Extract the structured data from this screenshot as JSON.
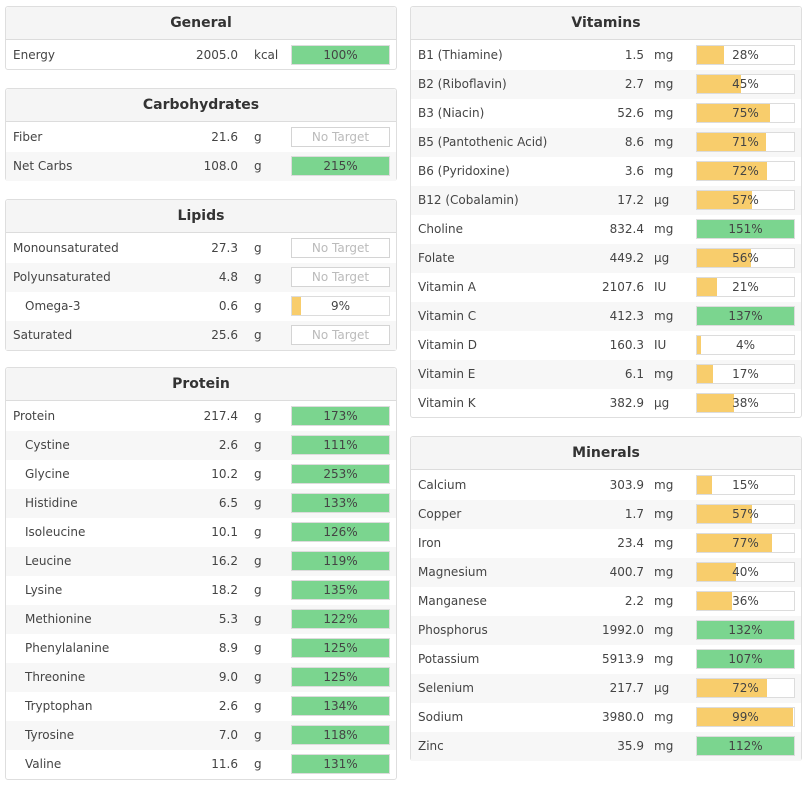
{
  "colors": {
    "green": "#7bd58f",
    "orange": "#f8cd6c"
  },
  "panels": {
    "general": {
      "title": "General",
      "rows": [
        {
          "name": "Energy",
          "amount": "2005.0",
          "unit": "kcal",
          "pct": "100%",
          "value": 100,
          "kind": "green"
        }
      ]
    },
    "carbohydrates": {
      "title": "Carbohydrates",
      "rows": [
        {
          "name": "Fiber",
          "amount": "21.6",
          "unit": "g",
          "pct": "No Target",
          "value": 0,
          "kind": "none"
        },
        {
          "name": "Net Carbs",
          "amount": "108.0",
          "unit": "g",
          "pct": "215%",
          "value": 215,
          "kind": "green"
        }
      ]
    },
    "lipids": {
      "title": "Lipids",
      "rows": [
        {
          "name": "Monounsaturated",
          "amount": "27.3",
          "unit": "g",
          "pct": "No Target",
          "value": 0,
          "kind": "none"
        },
        {
          "name": "Polyunsaturated",
          "amount": "4.8",
          "unit": "g",
          "pct": "No Target",
          "value": 0,
          "kind": "none"
        },
        {
          "name": "Omega-3",
          "amount": "0.6",
          "unit": "g",
          "pct": "9%",
          "value": 9,
          "kind": "orange",
          "indent": true
        },
        {
          "name": "Saturated",
          "amount": "25.6",
          "unit": "g",
          "pct": "No Target",
          "value": 0,
          "kind": "none"
        }
      ]
    },
    "protein": {
      "title": "Protein",
      "rows": [
        {
          "name": "Protein",
          "amount": "217.4",
          "unit": "g",
          "pct": "173%",
          "value": 173,
          "kind": "green"
        },
        {
          "name": "Cystine",
          "amount": "2.6",
          "unit": "g",
          "pct": "111%",
          "value": 111,
          "kind": "green",
          "indent": true
        },
        {
          "name": "Glycine",
          "amount": "10.2",
          "unit": "g",
          "pct": "253%",
          "value": 253,
          "kind": "green",
          "indent": true
        },
        {
          "name": "Histidine",
          "amount": "6.5",
          "unit": "g",
          "pct": "133%",
          "value": 133,
          "kind": "green",
          "indent": true
        },
        {
          "name": "Isoleucine",
          "amount": "10.1",
          "unit": "g",
          "pct": "126%",
          "value": 126,
          "kind": "green",
          "indent": true
        },
        {
          "name": "Leucine",
          "amount": "16.2",
          "unit": "g",
          "pct": "119%",
          "value": 119,
          "kind": "green",
          "indent": true
        },
        {
          "name": "Lysine",
          "amount": "18.2",
          "unit": "g",
          "pct": "135%",
          "value": 135,
          "kind": "green",
          "indent": true
        },
        {
          "name": "Methionine",
          "amount": "5.3",
          "unit": "g",
          "pct": "122%",
          "value": 122,
          "kind": "green",
          "indent": true
        },
        {
          "name": "Phenylalanine",
          "amount": "8.9",
          "unit": "g",
          "pct": "125%",
          "value": 125,
          "kind": "green",
          "indent": true
        },
        {
          "name": "Threonine",
          "amount": "9.0",
          "unit": "g",
          "pct": "125%",
          "value": 125,
          "kind": "green",
          "indent": true
        },
        {
          "name": "Tryptophan",
          "amount": "2.6",
          "unit": "g",
          "pct": "134%",
          "value": 134,
          "kind": "green",
          "indent": true
        },
        {
          "name": "Tyrosine",
          "amount": "7.0",
          "unit": "g",
          "pct": "118%",
          "value": 118,
          "kind": "green",
          "indent": true
        },
        {
          "name": "Valine",
          "amount": "11.6",
          "unit": "g",
          "pct": "131%",
          "value": 131,
          "kind": "green",
          "indent": true
        }
      ]
    },
    "vitamins": {
      "title": "Vitamins",
      "rows": [
        {
          "name": "B1 (Thiamine)",
          "amount": "1.5",
          "unit": "mg",
          "pct": "28%",
          "value": 28,
          "kind": "orange"
        },
        {
          "name": "B2 (Riboflavin)",
          "amount": "2.7",
          "unit": "mg",
          "pct": "45%",
          "value": 45,
          "kind": "orange"
        },
        {
          "name": "B3 (Niacin)",
          "amount": "52.6",
          "unit": "mg",
          "pct": "75%",
          "value": 75,
          "kind": "orange"
        },
        {
          "name": "B5 (Pantothenic Acid)",
          "amount": "8.6",
          "unit": "mg",
          "pct": "71%",
          "value": 71,
          "kind": "orange"
        },
        {
          "name": "B6 (Pyridoxine)",
          "amount": "3.6",
          "unit": "mg",
          "pct": "72%",
          "value": 72,
          "kind": "orange"
        },
        {
          "name": "B12 (Cobalamin)",
          "amount": "17.2",
          "unit": "µg",
          "pct": "57%",
          "value": 57,
          "kind": "orange"
        },
        {
          "name": "Choline",
          "amount": "832.4",
          "unit": "mg",
          "pct": "151%",
          "value": 151,
          "kind": "green"
        },
        {
          "name": "Folate",
          "amount": "449.2",
          "unit": "µg",
          "pct": "56%",
          "value": 56,
          "kind": "orange"
        },
        {
          "name": "Vitamin A",
          "amount": "2107.6",
          "unit": "IU",
          "pct": "21%",
          "value": 21,
          "kind": "orange"
        },
        {
          "name": "Vitamin C",
          "amount": "412.3",
          "unit": "mg",
          "pct": "137%",
          "value": 137,
          "kind": "green"
        },
        {
          "name": "Vitamin D",
          "amount": "160.3",
          "unit": "IU",
          "pct": "4%",
          "value": 4,
          "kind": "orange"
        },
        {
          "name": "Vitamin E",
          "amount": "6.1",
          "unit": "mg",
          "pct": "17%",
          "value": 17,
          "kind": "orange"
        },
        {
          "name": "Vitamin K",
          "amount": "382.9",
          "unit": "µg",
          "pct": "38%",
          "value": 38,
          "kind": "orange"
        }
      ]
    },
    "minerals": {
      "title": "Minerals",
      "rows": [
        {
          "name": "Calcium",
          "amount": "303.9",
          "unit": "mg",
          "pct": "15%",
          "value": 15,
          "kind": "orange"
        },
        {
          "name": "Copper",
          "amount": "1.7",
          "unit": "mg",
          "pct": "57%",
          "value": 57,
          "kind": "orange"
        },
        {
          "name": "Iron",
          "amount": "23.4",
          "unit": "mg",
          "pct": "77%",
          "value": 77,
          "kind": "orange"
        },
        {
          "name": "Magnesium",
          "amount": "400.7",
          "unit": "mg",
          "pct": "40%",
          "value": 40,
          "kind": "orange"
        },
        {
          "name": "Manganese",
          "amount": "2.2",
          "unit": "mg",
          "pct": "36%",
          "value": 36,
          "kind": "orange"
        },
        {
          "name": "Phosphorus",
          "amount": "1992.0",
          "unit": "mg",
          "pct": "132%",
          "value": 132,
          "kind": "green"
        },
        {
          "name": "Potassium",
          "amount": "5913.9",
          "unit": "mg",
          "pct": "107%",
          "value": 107,
          "kind": "green"
        },
        {
          "name": "Selenium",
          "amount": "217.7",
          "unit": "µg",
          "pct": "72%",
          "value": 72,
          "kind": "orange"
        },
        {
          "name": "Sodium",
          "amount": "3980.0",
          "unit": "mg",
          "pct": "99%",
          "value": 99,
          "kind": "orange"
        },
        {
          "name": "Zinc",
          "amount": "35.9",
          "unit": "mg",
          "pct": "112%",
          "value": 112,
          "kind": "green"
        }
      ]
    }
  }
}
